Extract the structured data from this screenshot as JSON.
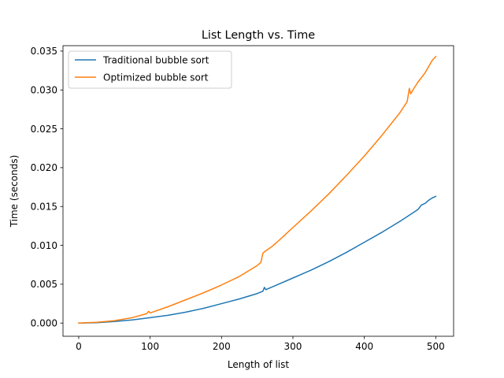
{
  "chart_data": {
    "type": "line",
    "title": "List Length vs. Time",
    "xlabel": "Length of list",
    "ylabel": "Time (seconds)",
    "xlim": [
      -22,
      525
    ],
    "ylim": [
      -0.0017,
      0.0357
    ],
    "x_ticks": [
      0,
      100,
      200,
      300,
      400,
      500
    ],
    "x_tick_labels": [
      "0",
      "100",
      "200",
      "300",
      "400",
      "500"
    ],
    "y_ticks": [
      0,
      0.005,
      0.01,
      0.015,
      0.02,
      0.025,
      0.03,
      0.035
    ],
    "y_tick_labels": [
      "0.000",
      "0.005",
      "0.010",
      "0.015",
      "0.020",
      "0.025",
      "0.030",
      "0.035"
    ],
    "grid": false,
    "legend_position": "top-left",
    "series": [
      {
        "name": "Traditional bubble sort",
        "color": "#1f77b4",
        "x": [
          0,
          25,
          50,
          75,
          100,
          125,
          150,
          175,
          200,
          225,
          250,
          258,
          260,
          262,
          275,
          300,
          325,
          350,
          375,
          400,
          425,
          450,
          475,
          480,
          485,
          490,
          495,
          500
        ],
        "y": [
          0,
          5e-05,
          0.0002,
          0.0004,
          0.0007,
          0.001,
          0.0014,
          0.0019,
          0.0025,
          0.0031,
          0.0038,
          0.0041,
          0.0046,
          0.0043,
          0.0048,
          0.0058,
          0.0068,
          0.0079,
          0.0091,
          0.0104,
          0.0117,
          0.0131,
          0.0146,
          0.0152,
          0.0154,
          0.0158,
          0.0161,
          0.0163
        ]
      },
      {
        "name": "Optimized bubble sort",
        "color": "#ff7f0e",
        "x": [
          0,
          25,
          50,
          75,
          95,
          98,
          100,
          125,
          150,
          175,
          200,
          225,
          250,
          255,
          258,
          262,
          270,
          280,
          300,
          325,
          350,
          375,
          400,
          425,
          450,
          460,
          463,
          465,
          468,
          475,
          485,
          495,
          500
        ],
        "y": [
          0,
          0.0001,
          0.0003,
          0.0007,
          0.0012,
          0.0015,
          0.0013,
          0.0021,
          0.003,
          0.0039,
          0.0049,
          0.006,
          0.0074,
          0.0078,
          0.009,
          0.0093,
          0.0098,
          0.0106,
          0.0123,
          0.0144,
          0.0166,
          0.019,
          0.0215,
          0.0242,
          0.0271,
          0.0285,
          0.0302,
          0.0295,
          0.03,
          0.031,
          0.0322,
          0.0338,
          0.0343
        ]
      }
    ]
  }
}
